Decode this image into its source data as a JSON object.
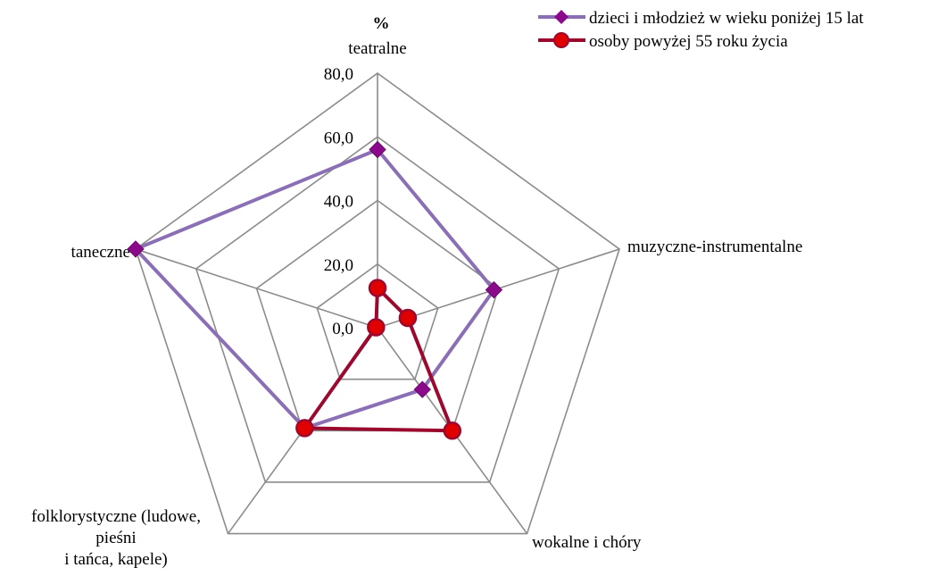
{
  "chart_data": {
    "type": "radar",
    "unit_label": "%",
    "categories": [
      "teatralne",
      "muzyczne-instrumentalne",
      "wokalne i chóry",
      [
        "folklorystyczne (ludowe,",
        "pieśni",
        "i tańca, kapele)"
      ],
      "taneczne"
    ],
    "ticks": [
      "0,0",
      "20,0",
      "40,0",
      "60,0",
      "80,0"
    ],
    "rlim": [
      0,
      80
    ],
    "grid": true,
    "legend_position": "top-right",
    "series": [
      {
        "name": "dzieci i młodzież w wieku poniżej 15 lat",
        "color": "#8B6FB5",
        "marker_color": "#8B0A8B",
        "marker": "diamond",
        "values": [
          56.0,
          38.5,
          24.0,
          39.0,
          80.0
        ]
      },
      {
        "name": "osoby powyżej 55 roku życia",
        "color": "#9B0A2E",
        "marker_color": "#E00000",
        "marker": "circle",
        "values": [
          12.5,
          10.0,
          40.0,
          39.0,
          0.5
        ]
      }
    ]
  }
}
